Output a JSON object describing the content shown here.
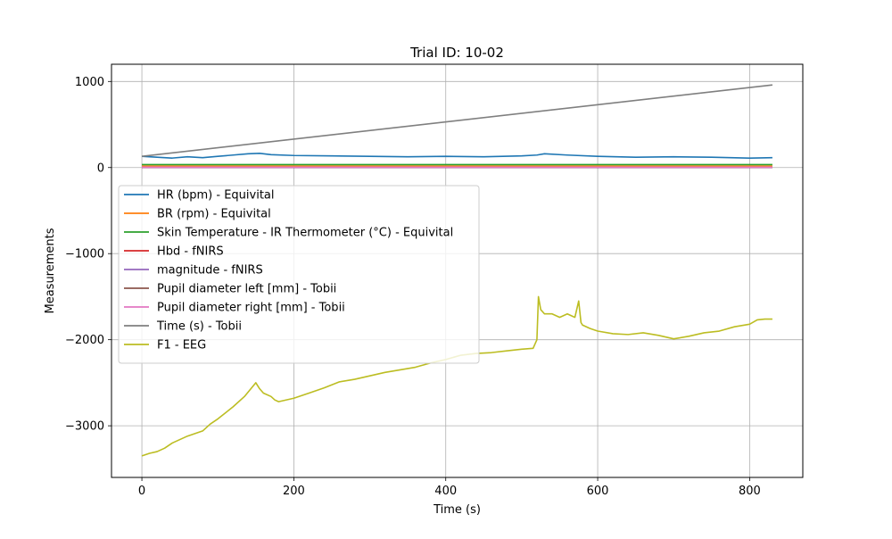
{
  "chart_data": {
    "type": "line",
    "title": "Trial ID: 10-02",
    "xlabel": "Time (s)",
    "ylabel": "Measurements",
    "xlim": [
      -40,
      870
    ],
    "ylim": [
      -3600,
      1200
    ],
    "xticks": [
      0,
      200,
      400,
      600,
      800
    ],
    "yticks": [
      1000,
      0,
      -1000,
      -2000,
      -3000
    ],
    "xtick_labels": [
      "0",
      "200",
      "400",
      "600",
      "800"
    ],
    "ytick_labels": [
      "1000",
      "0",
      "−1000",
      "−2000",
      "−3000"
    ],
    "grid": true,
    "legend_position": "center-left",
    "series": [
      {
        "name": "HR (bpm) - Equivital",
        "color": "#1f77b4",
        "x": [
          0,
          20,
          40,
          60,
          80,
          100,
          120,
          140,
          155,
          170,
          200,
          250,
          300,
          350,
          400,
          450,
          500,
          520,
          530,
          560,
          600,
          650,
          700,
          750,
          800,
          830
        ],
        "y": [
          130,
          120,
          110,
          125,
          115,
          130,
          145,
          160,
          165,
          150,
          140,
          135,
          130,
          125,
          130,
          125,
          135,
          145,
          160,
          145,
          130,
          120,
          125,
          120,
          110,
          115
        ]
      },
      {
        "name": "BR (rpm) - Equivital",
        "color": "#ff7f0e",
        "x": [
          0,
          830
        ],
        "y": [
          18,
          18
        ]
      },
      {
        "name": "Skin Temperature - IR Thermometer (°C) - Equivital",
        "color": "#2ca02c",
        "x": [
          0,
          830
        ],
        "y": [
          34,
          34
        ]
      },
      {
        "name": "Hbd - fNIRS",
        "color": "#d62728",
        "x": [
          0,
          830
        ],
        "y": [
          0,
          0
        ]
      },
      {
        "name": "magnitude - fNIRS",
        "color": "#9467bd",
        "x": [
          0,
          830
        ],
        "y": [
          2,
          2
        ]
      },
      {
        "name": "Pupil diameter left [mm] - Tobii",
        "color": "#8c564b",
        "x": [
          0,
          830
        ],
        "y": [
          4,
          4
        ]
      },
      {
        "name": "Pupil diameter right [mm] - Tobii",
        "color": "#e377c2",
        "x": [
          0,
          830
        ],
        "y": [
          4,
          4
        ]
      },
      {
        "name": "Time (s) - Tobii",
        "color": "#7f7f7f",
        "x": [
          0,
          830
        ],
        "y": [
          130,
          960
        ]
      },
      {
        "name": "F1 - EEG",
        "color": "#bcbd22",
        "x": [
          0,
          10,
          20,
          30,
          40,
          60,
          80,
          90,
          100,
          120,
          135,
          150,
          155,
          160,
          170,
          175,
          180,
          200,
          220,
          240,
          260,
          280,
          300,
          320,
          340,
          360,
          380,
          400,
          420,
          440,
          460,
          480,
          500,
          515,
          520,
          522,
          525,
          530,
          540,
          550,
          560,
          570,
          575,
          578,
          580,
          590,
          600,
          620,
          640,
          660,
          680,
          700,
          720,
          740,
          760,
          780,
          800,
          810,
          820,
          830
        ],
        "y": [
          -3350,
          -3320,
          -3300,
          -3260,
          -3200,
          -3120,
          -3060,
          -2980,
          -2920,
          -2780,
          -2660,
          -2500,
          -2570,
          -2620,
          -2660,
          -2700,
          -2720,
          -2680,
          -2620,
          -2560,
          -2490,
          -2460,
          -2420,
          -2380,
          -2350,
          -2320,
          -2270,
          -2230,
          -2180,
          -2160,
          -2150,
          -2130,
          -2110,
          -2100,
          -2000,
          -1500,
          -1650,
          -1700,
          -1700,
          -1740,
          -1700,
          -1740,
          -1550,
          -1800,
          -1830,
          -1870,
          -1900,
          -1930,
          -1940,
          -1920,
          -1950,
          -1990,
          -1960,
          -1920,
          -1900,
          -1850,
          -1820,
          -1770,
          -1760,
          -1760
        ]
      }
    ]
  }
}
